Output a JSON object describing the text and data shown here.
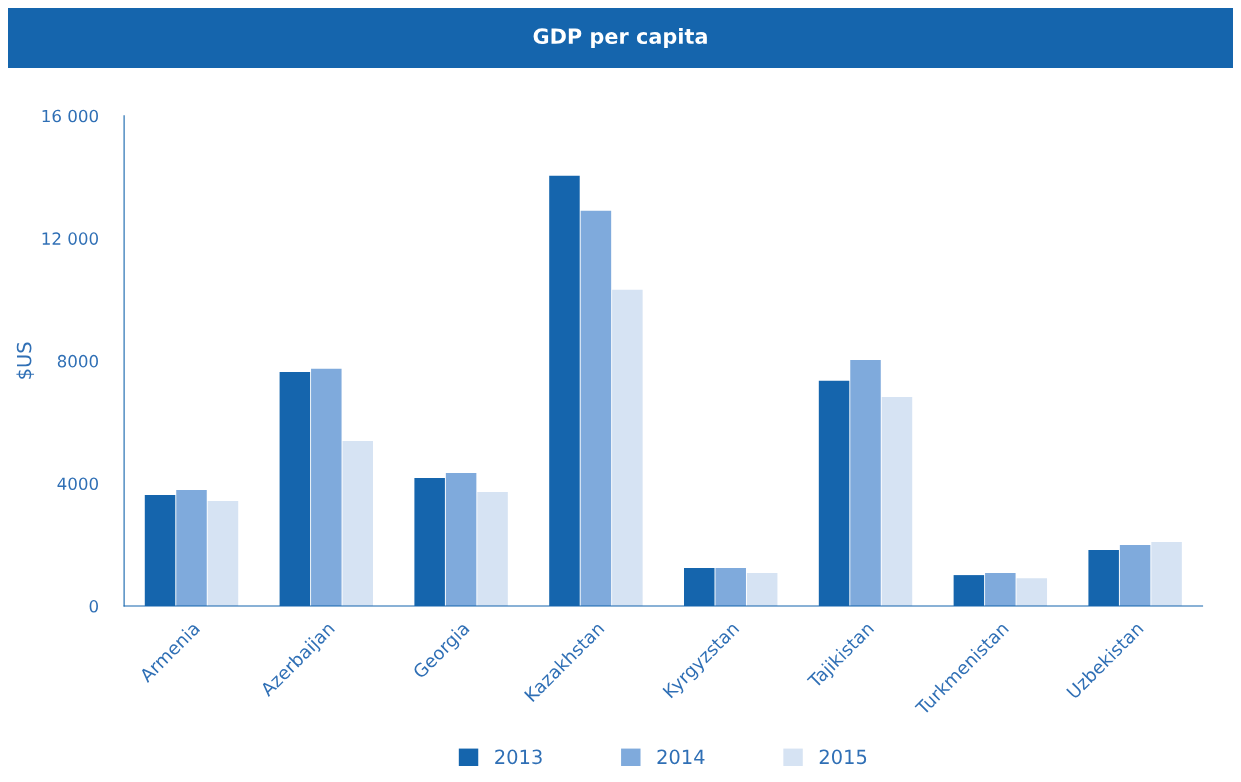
{
  "chart_data": {
    "type": "bar",
    "title": "GDP per capita",
    "ylabel": "$US",
    "categories": [
      "Armenia",
      "Azerbaijan",
      "Georgia",
      "Kazakhstan",
      "Kyrgyzstan",
      "Tajikistan",
      "Turkmenistan",
      "Uzbekistan"
    ],
    "series": [
      {
        "name": "2013",
        "color": "#1565ad",
        "values": [
          3620,
          7640,
          4180,
          14040,
          1240,
          7350,
          1010,
          1830
        ]
      },
      {
        "name": "2014",
        "color": "#7faadc",
        "values": [
          3790,
          7740,
          4340,
          12900,
          1240,
          8030,
          1080,
          1990
        ]
      },
      {
        "name": "2015",
        "color": "#d6e3f3",
        "values": [
          3430,
          5390,
          3720,
          10320,
          1080,
          6820,
          910,
          2090
        ]
      }
    ],
    "ylim": [
      0,
      16000
    ],
    "yticks": [
      0,
      4000,
      8000,
      {
        "value": 12000,
        "label": "12 000"
      },
      {
        "value": 16000,
        "label": "16 000"
      }
    ],
    "grid": false,
    "legend": "bottom"
  }
}
